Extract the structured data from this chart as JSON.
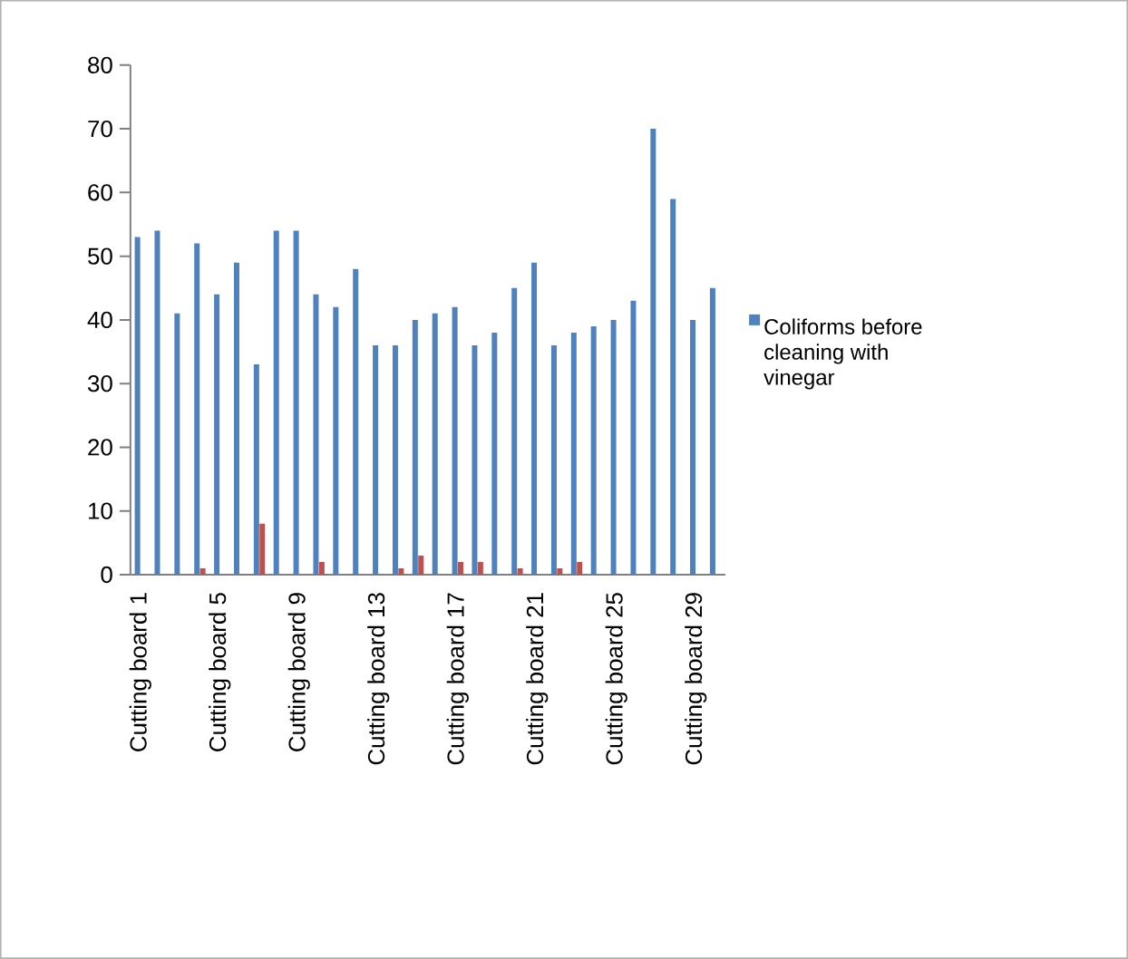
{
  "chart_data": {
    "type": "bar",
    "categories": [
      "Cutting board 1",
      null,
      null,
      null,
      "Cutting board 5",
      null,
      null,
      null,
      "Cutting board 9",
      null,
      null,
      null,
      "Cutting board 13",
      null,
      null,
      null,
      "Cutting board 17",
      null,
      null,
      null,
      "Cutting board 21",
      null,
      null,
      null,
      "Cutting board 25",
      null,
      null,
      null,
      "Cutting board 29",
      null
    ],
    "series": [
      {
        "name": "Coliforms before cleaning with vinegar",
        "color": "#4f81bd",
        "values": [
          53,
          54,
          41,
          52,
          44,
          49,
          33,
          54,
          54,
          44,
          42,
          48,
          36,
          36,
          40,
          41,
          42,
          36,
          38,
          45,
          49,
          36,
          38,
          39,
          40,
          43,
          70,
          59,
          40,
          45
        ]
      },
      {
        "color": "#c0504d",
        "values": [
          0,
          0,
          0,
          1,
          0,
          0,
          8,
          0,
          0,
          2,
          0,
          0,
          0,
          1,
          3,
          0,
          2,
          2,
          0,
          1,
          0,
          1,
          2,
          0,
          0,
          0,
          0,
          0,
          0,
          0
        ]
      }
    ],
    "ylim": [
      0,
      80
    ],
    "yticks": [
      0,
      10,
      20,
      30,
      40,
      50,
      60,
      70,
      80
    ],
    "grid": false,
    "legend": "right"
  }
}
